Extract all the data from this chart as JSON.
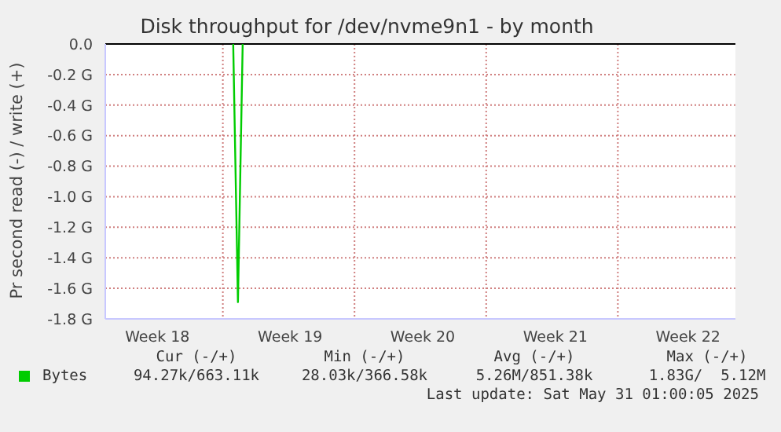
{
  "chart_data": {
    "type": "line",
    "title": "Disk throughput for /dev/nvme9n1 - by month",
    "ylabel": "Pr second read (-) / write (+)",
    "categories": [
      null,
      null,
      null,
      null,
      null,
      null,
      null,
      null,
      null,
      null,
      null,
      "Week 18",
      null,
      null,
      null,
      null,
      null,
      null,
      null,
      null,
      null,
      null,
      null,
      null,
      null,
      null,
      null,
      null,
      null,
      null,
      null,
      null,
      null,
      null,
      null,
      null,
      null,
      null,
      null,
      "Week 19",
      null,
      null,
      null,
      null,
      null,
      null,
      null,
      null,
      null,
      null,
      null,
      null,
      null,
      null,
      null,
      null,
      null,
      null,
      null,
      null,
      null,
      null,
      null,
      null,
      null,
      null,
      null,
      "Week 20",
      null,
      null,
      null,
      null,
      null,
      null,
      null,
      null,
      null,
      null,
      null,
      null,
      null,
      null,
      null,
      null,
      null,
      null,
      null,
      null,
      null,
      null,
      null,
      null,
      null,
      null,
      null,
      "Week 21",
      null,
      null,
      null,
      null,
      null,
      null,
      null,
      null,
      null,
      null,
      null,
      null,
      null,
      null,
      null,
      null,
      null,
      null,
      null,
      null,
      null,
      null,
      null,
      null,
      null,
      null,
      null,
      "Week 22",
      null,
      null,
      null,
      null,
      null,
      null,
      null,
      null,
      null,
      null
    ],
    "ylim": [
      -1.8,
      0
    ],
    "yticks": [
      {
        "value": 0,
        "label": "0.0"
      },
      {
        "value": -0.2,
        "label": "-0.2 G"
      },
      {
        "value": -0.4,
        "label": "-0.4 G"
      },
      {
        "value": -0.6,
        "label": "-0.6 G"
      },
      {
        "value": -0.8,
        "label": "-0.8 G"
      },
      {
        "value": -1,
        "label": "-1.0 G"
      },
      {
        "value": -1.2,
        "label": "-1.2 G"
      },
      {
        "value": -1.4,
        "label": "-1.4 G"
      },
      {
        "value": -1.6,
        "label": "-1.6 G"
      },
      {
        "value": -1.8,
        "label": "-1.8 G"
      }
    ],
    "series": [
      {
        "name": "Bytes",
        "color": "#00cc00",
        "values": [
          null,
          null,
          null,
          null,
          null,
          null,
          null,
          null,
          null,
          null,
          null,
          null,
          null,
          null,
          null,
          null,
          null,
          null,
          null,
          null,
          null,
          null,
          null,
          null,
          null,
          null,
          null,
          0,
          -1.69,
          0,
          null,
          null,
          null,
          null,
          null,
          null,
          null,
          null,
          null,
          null,
          null,
          null,
          null,
          null,
          null,
          null,
          null,
          null,
          null,
          null,
          null,
          null,
          null,
          null,
          null,
          null,
          null,
          null,
          null,
          null,
          null,
          null,
          null,
          null,
          null,
          null,
          null,
          null,
          null,
          null,
          null,
          null,
          null,
          null,
          null,
          null,
          null,
          null,
          null,
          null,
          null,
          null,
          null,
          null,
          null,
          null,
          null,
          null,
          null,
          null,
          null,
          null,
          null,
          null,
          null,
          null,
          null,
          null,
          null,
          null,
          null,
          null,
          null,
          null,
          null,
          null,
          null,
          null,
          null,
          null,
          null,
          null,
          null,
          null,
          null,
          null,
          null,
          null,
          null,
          null,
          null,
          null,
          null,
          null,
          null,
          null,
          null,
          null,
          null,
          null,
          null,
          null,
          null,
          null
        ]
      }
    ],
    "grid": true,
    "legend": "bottom left",
    "marker": "none",
    "line_style": "solid",
    "annotations": [
      "Cur (-/+)",
      "Min (-/+)",
      "Avg (-/+)",
      "Max (-/+)",
      "94.27k/663.11k",
      "28.03k/366.58k",
      "5.26M/851.38k",
      "1.83G/  5.12M",
      "Last update: Sat May 31 01:00:05 2025"
    ]
  }
}
